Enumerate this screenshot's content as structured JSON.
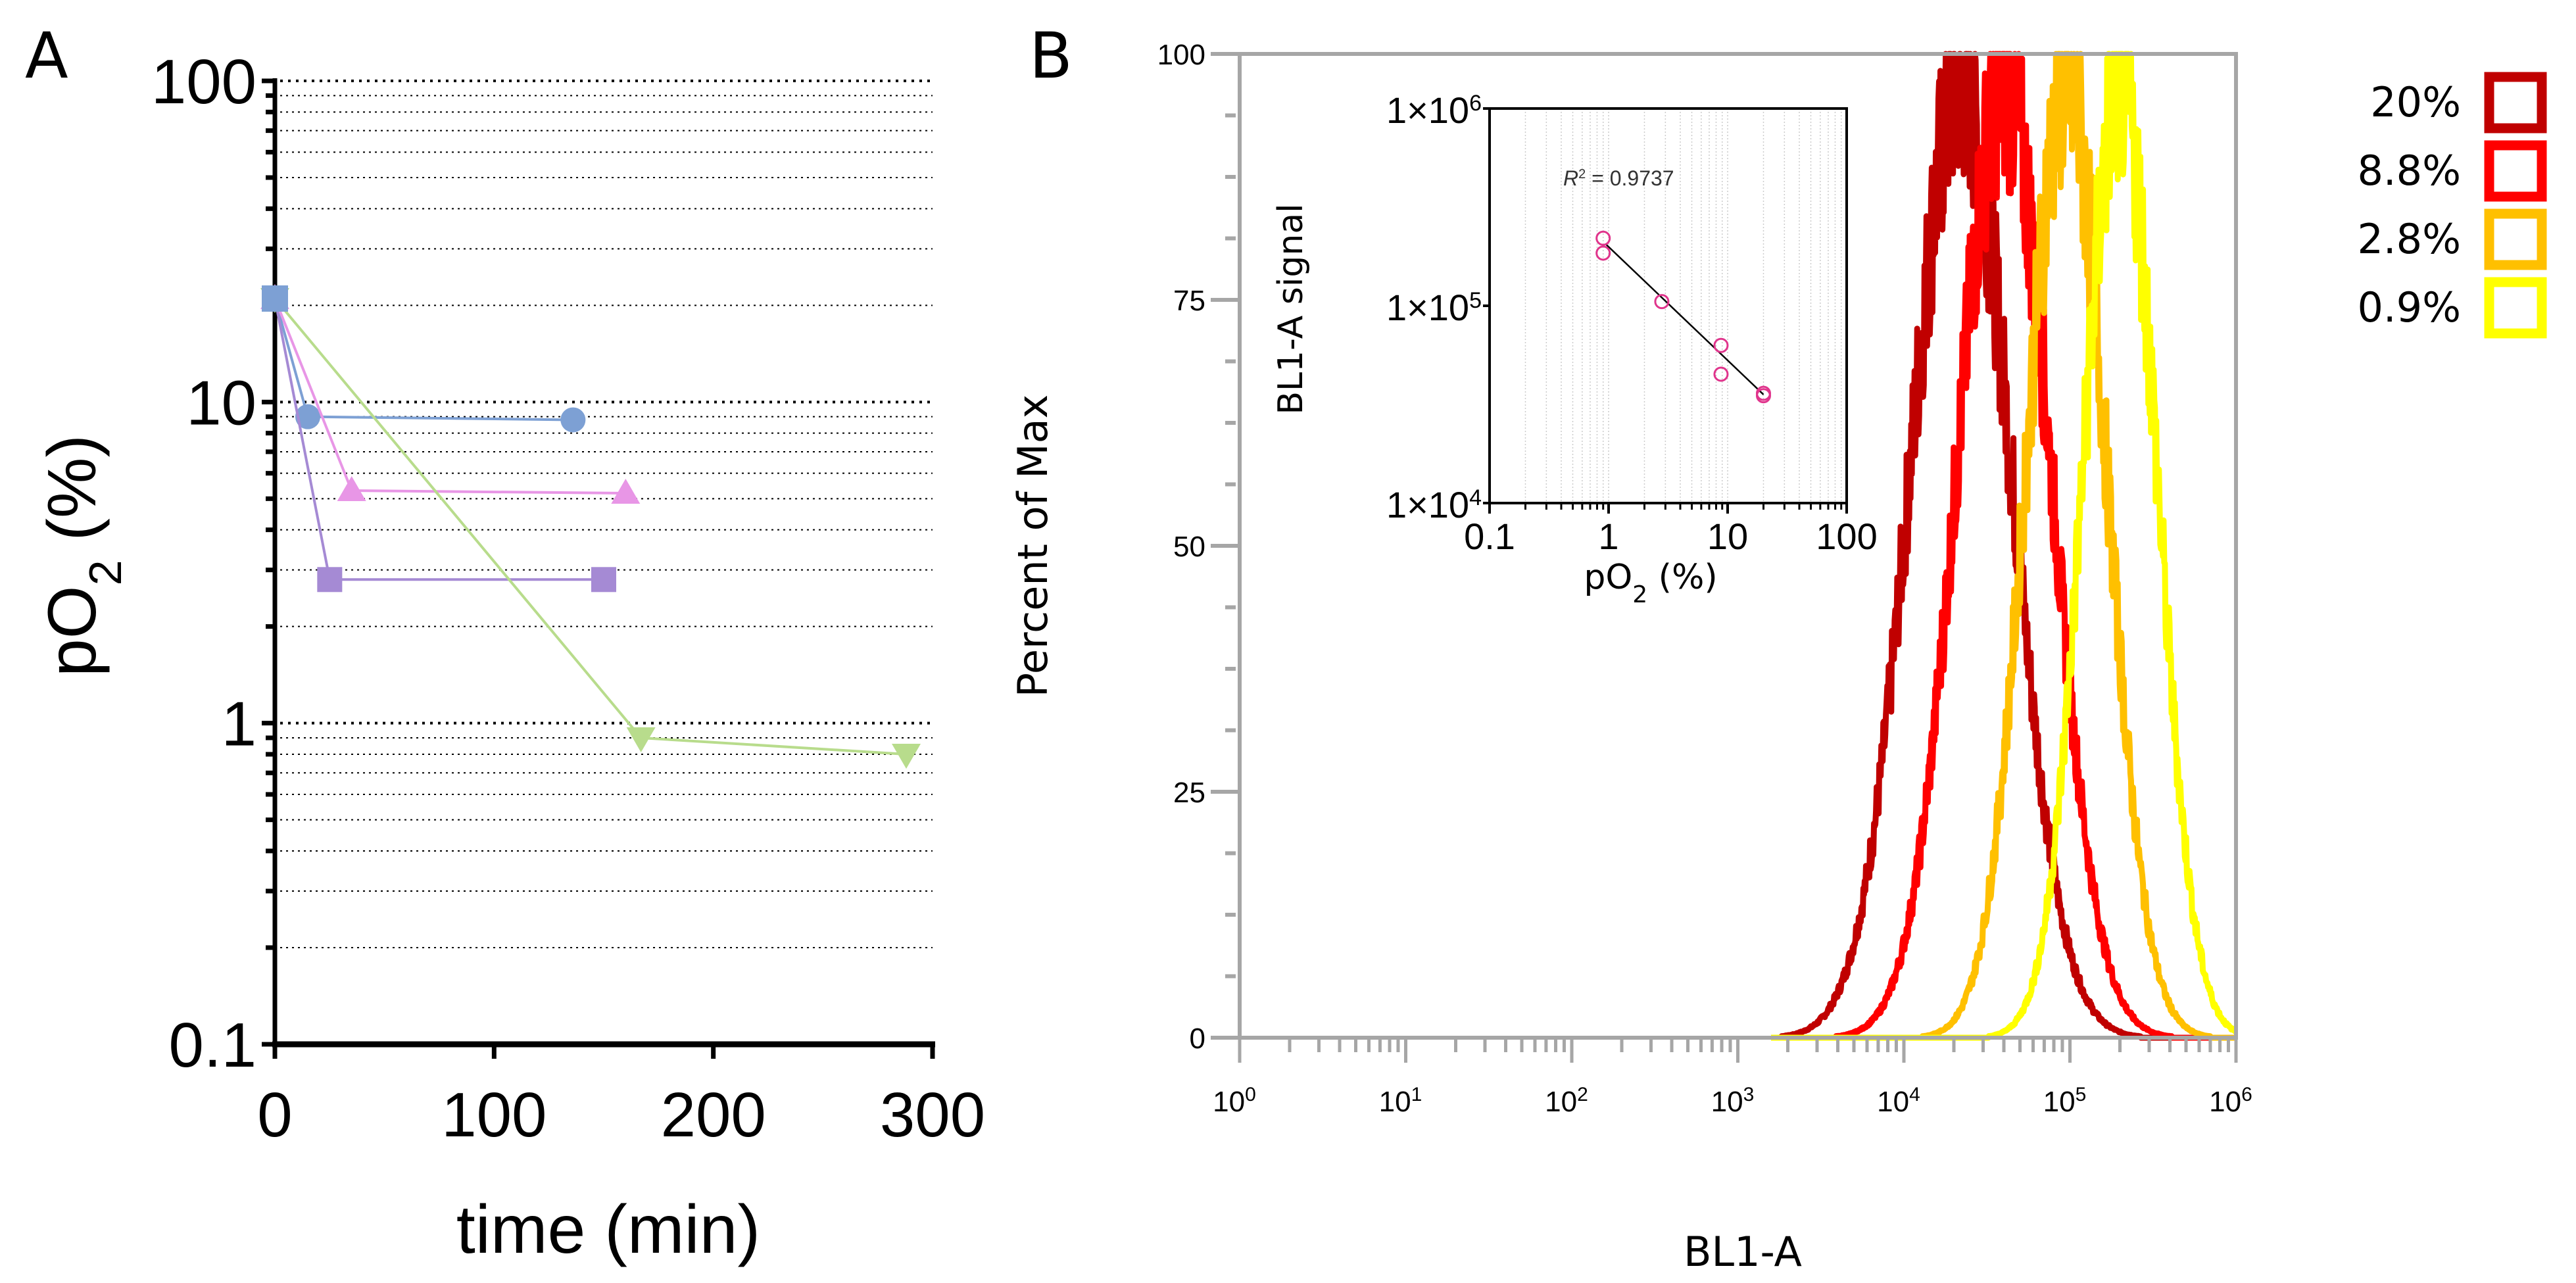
{
  "figure": {
    "panel_a_label": "A",
    "panel_b_label": "B"
  },
  "chart_data": [
    {
      "type": "line",
      "panel": "A",
      "title": "",
      "xlabel": "time (min)",
      "ylabel_main": "pO",
      "ylabel_sub": "2",
      "ylabel_tail": " (%)",
      "yscale": "log",
      "xlim": [
        0,
        300
      ],
      "ylim": [
        0.1,
        100
      ],
      "xticks": [
        0,
        100,
        200,
        300
      ],
      "xtick_labels": [
        "0",
        "100",
        "200",
        "300"
      ],
      "yticks": [
        0.1,
        1,
        10,
        100
      ],
      "ytick_labels": [
        "0.1",
        "1",
        "10",
        "100"
      ],
      "grid": "horizontal dotted at minor log ticks",
      "series": [
        {
          "name": "circle-blue",
          "marker": "circle",
          "color": "#7da0d4",
          "x": [
            0,
            15,
            136
          ],
          "y": [
            21,
            9,
            8.8
          ]
        },
        {
          "name": "triangle-pink",
          "marker": "triangle-up",
          "color": "#e896e6",
          "x": [
            0,
            35,
            160
          ],
          "y": [
            21,
            5.3,
            5.2
          ]
        },
        {
          "name": "square-purple",
          "marker": "square",
          "color": "#a58ad4",
          "x": [
            0,
            25,
            150
          ],
          "y": [
            21,
            2.8,
            2.8
          ]
        },
        {
          "name": "triangle-down-green",
          "marker": "triangle-down",
          "color": "#b8dc8c",
          "x": [
            0,
            167,
            288
          ],
          "y": [
            21,
            0.9,
            0.8
          ]
        }
      ]
    },
    {
      "type": "area",
      "panel": "B",
      "title": "",
      "xlabel": "BL1-A",
      "ylabel": "Percent of Max",
      "xscale": "log",
      "xlim": [
        1,
        1000000
      ],
      "ylim": [
        0,
        100
      ],
      "xtick_labels": [
        {
          "base": "10",
          "exp": "0"
        },
        {
          "base": "10",
          "exp": "1"
        },
        {
          "base": "10",
          "exp": "2"
        },
        {
          "base": "10",
          "exp": "3"
        },
        {
          "base": "10",
          "exp": "4"
        },
        {
          "base": "10",
          "exp": "5"
        },
        {
          "base": "10",
          "exp": "6"
        }
      ],
      "yticks": [
        0,
        25,
        50,
        75,
        100
      ],
      "ytick_labels": [
        "0",
        "25",
        "50",
        "75",
        "100"
      ],
      "legend_position": "top-right (outside)",
      "series": [
        {
          "name": "20%",
          "color": "#c00000",
          "peak_x": 22000,
          "log_sd": 0.3,
          "peak_y": 100
        },
        {
          "name": "8.8%",
          "color": "#ff0000",
          "peak_x": 40000,
          "log_sd": 0.28,
          "peak_y": 100
        },
        {
          "name": "2.8%",
          "color": "#ffc000",
          "peak_x": 95000,
          "log_sd": 0.24,
          "peak_y": 100
        },
        {
          "name": "0.9%",
          "color": "#ffff00",
          "peak_x": 200000,
          "log_sd": 0.22,
          "peak_y": 100
        }
      ]
    },
    {
      "type": "scatter",
      "panel": "B-inset",
      "title": "",
      "xlabel_main": "pO",
      "xlabel_sub": "2",
      "xlabel_tail": " (%)",
      "ylabel": "BL1-A signal",
      "xscale": "log",
      "yscale": "log",
      "xlim": [
        0.1,
        100
      ],
      "ylim": [
        10000,
        1000000
      ],
      "xtick_labels": [
        "0.1",
        "1",
        "10",
        "100"
      ],
      "ytick_labels": [
        {
          "base": "1×10",
          "exp": "4"
        },
        {
          "base": "1×10",
          "exp": "5"
        },
        {
          "base": "1×10",
          "exp": "6"
        }
      ],
      "annotation": {
        "r": "R",
        "sup": "2",
        "text": " = 0.9737"
      },
      "point_color": "#e0348c",
      "points": [
        {
          "x": 0.9,
          "y": 220000
        },
        {
          "x": 0.9,
          "y": 185000
        },
        {
          "x": 2.8,
          "y": 105000
        },
        {
          "x": 8.8,
          "y": 63000
        },
        {
          "x": 8.8,
          "y": 45000
        },
        {
          "x": 20,
          "y": 36000
        },
        {
          "x": 20,
          "y": 35000
        }
      ],
      "fit_line": {
        "x": [
          0.95,
          20
        ],
        "y": [
          205000,
          35500
        ]
      }
    }
  ],
  "legend": {
    "items": [
      {
        "label": "20%",
        "color": "#c00000"
      },
      {
        "label": "8.8%",
        "color": "#ff0000"
      },
      {
        "label": "2.8%",
        "color": "#ffc000"
      },
      {
        "label": "0.9%",
        "color": "#ffff00"
      }
    ]
  }
}
